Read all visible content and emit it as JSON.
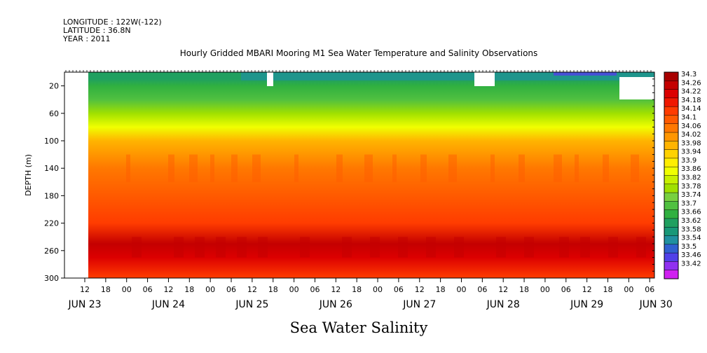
{
  "header": {
    "longitude": "LONGITUDE : 122W(-122)",
    "latitude": "LATITUDE : 36.8N",
    "year": "YEAR : 2011"
  },
  "chart_data": {
    "type": "heatmap",
    "title": "Hourly Gridded MBARI Mooring M1 Sea Water Temperature and Salinity Observations",
    "xlabel": "Sea Water Salinity",
    "ylabel": "DEPTH (m)",
    "ylim": [
      300,
      0
    ],
    "y_ticks": [
      20,
      60,
      100,
      140,
      180,
      220,
      260,
      300
    ],
    "x_hour_ticks": [
      "12",
      "18",
      "00",
      "06",
      "12",
      "18",
      "00",
      "06",
      "12",
      "18",
      "00",
      "06",
      "12",
      "18",
      "00",
      "06",
      "12",
      "18",
      "00",
      "06",
      "12",
      "18",
      "00",
      "06",
      "12",
      "18",
      "00",
      "06",
      "12",
      "18",
      "00",
      "06"
    ],
    "x_day_labels": [
      "JUN 23",
      "JUN 24",
      "JUN 25",
      "JUN 26",
      "JUN 27",
      "JUN 28",
      "JUN 29",
      "JUN 30"
    ],
    "colorbar_labels": [
      "34.3",
      "34.26",
      "34.22",
      "34.18",
      "34.14",
      "34.1",
      "34.06",
      "34.02",
      "33.98",
      "33.94",
      "33.9",
      "33.86",
      "33.82",
      "33.78",
      "33.74",
      "33.7",
      "33.66",
      "33.62",
      "33.58",
      "33.54",
      "33.5",
      "33.46",
      "33.42"
    ],
    "colorbar_colors": [
      "#a80000",
      "#c40000",
      "#dc0000",
      "#f01800",
      "#ff3c00",
      "#ff5a00",
      "#ff7800",
      "#ff9600",
      "#ffb400",
      "#ffd200",
      "#ffee00",
      "#f0ff00",
      "#c8f000",
      "#a0e000",
      "#78d040",
      "#50c040",
      "#30b040",
      "#20a060",
      "#189878",
      "#2090a0",
      "#3060d0",
      "#5040e8",
      "#9030f0",
      "#d020f0"
    ],
    "depth_profile": [
      {
        "depth": 10,
        "salinity": 33.6
      },
      {
        "depth": 20,
        "salinity": 33.64
      },
      {
        "depth": 40,
        "salinity": 33.7
      },
      {
        "depth": 60,
        "salinity": 33.76
      },
      {
        "depth": 80,
        "salinity": 33.84
      },
      {
        "depth": 100,
        "salinity": 33.96
      },
      {
        "depth": 120,
        "salinity": 34.02
      },
      {
        "depth": 140,
        "salinity": 34.07
      },
      {
        "depth": 180,
        "salinity": 34.1
      },
      {
        "depth": 220,
        "salinity": 34.14
      },
      {
        "depth": 250,
        "salinity": 34.24
      },
      {
        "depth": 270,
        "salinity": 34.2
      },
      {
        "depth": 300,
        "salinity": 34.14
      }
    ]
  }
}
